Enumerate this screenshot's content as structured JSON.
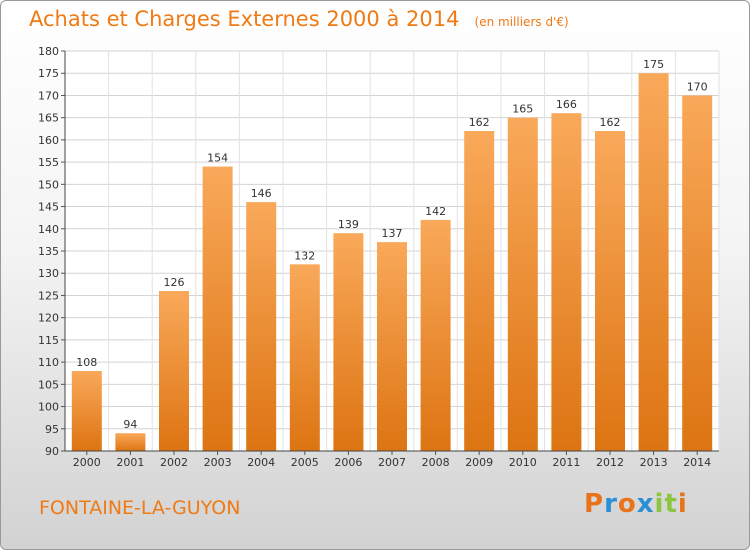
{
  "chart_data": {
    "type": "bar",
    "title": "Achats et Charges Externes 2000 à 2014",
    "subtitle": "(en milliers d'€)",
    "categories": [
      "2000",
      "2001",
      "2002",
      "2003",
      "2004",
      "2005",
      "2006",
      "2007",
      "2008",
      "2009",
      "2010",
      "2011",
      "2012",
      "2013",
      "2014"
    ],
    "values": [
      108,
      94,
      126,
      154,
      146,
      132,
      139,
      137,
      142,
      162,
      165,
      166,
      162,
      175,
      170
    ],
    "ylim": [
      90,
      180
    ],
    "yticks": [
      90,
      95,
      100,
      105,
      110,
      115,
      120,
      125,
      130,
      135,
      140,
      145,
      150,
      155,
      160,
      165,
      170,
      175,
      180
    ],
    "xlabel": "",
    "ylabel": "",
    "grid": true,
    "bar_color": "#f0821e"
  },
  "footer": {
    "commune": "FONTAINE-LA-GUYON",
    "logo_text": "Proxiti",
    "logo_colors": [
      "#e8731a",
      "#2b8fd6",
      "#e8731a",
      "#2b8fd6",
      "#8cc63f",
      "#8cc63f",
      "#e8731a"
    ]
  }
}
